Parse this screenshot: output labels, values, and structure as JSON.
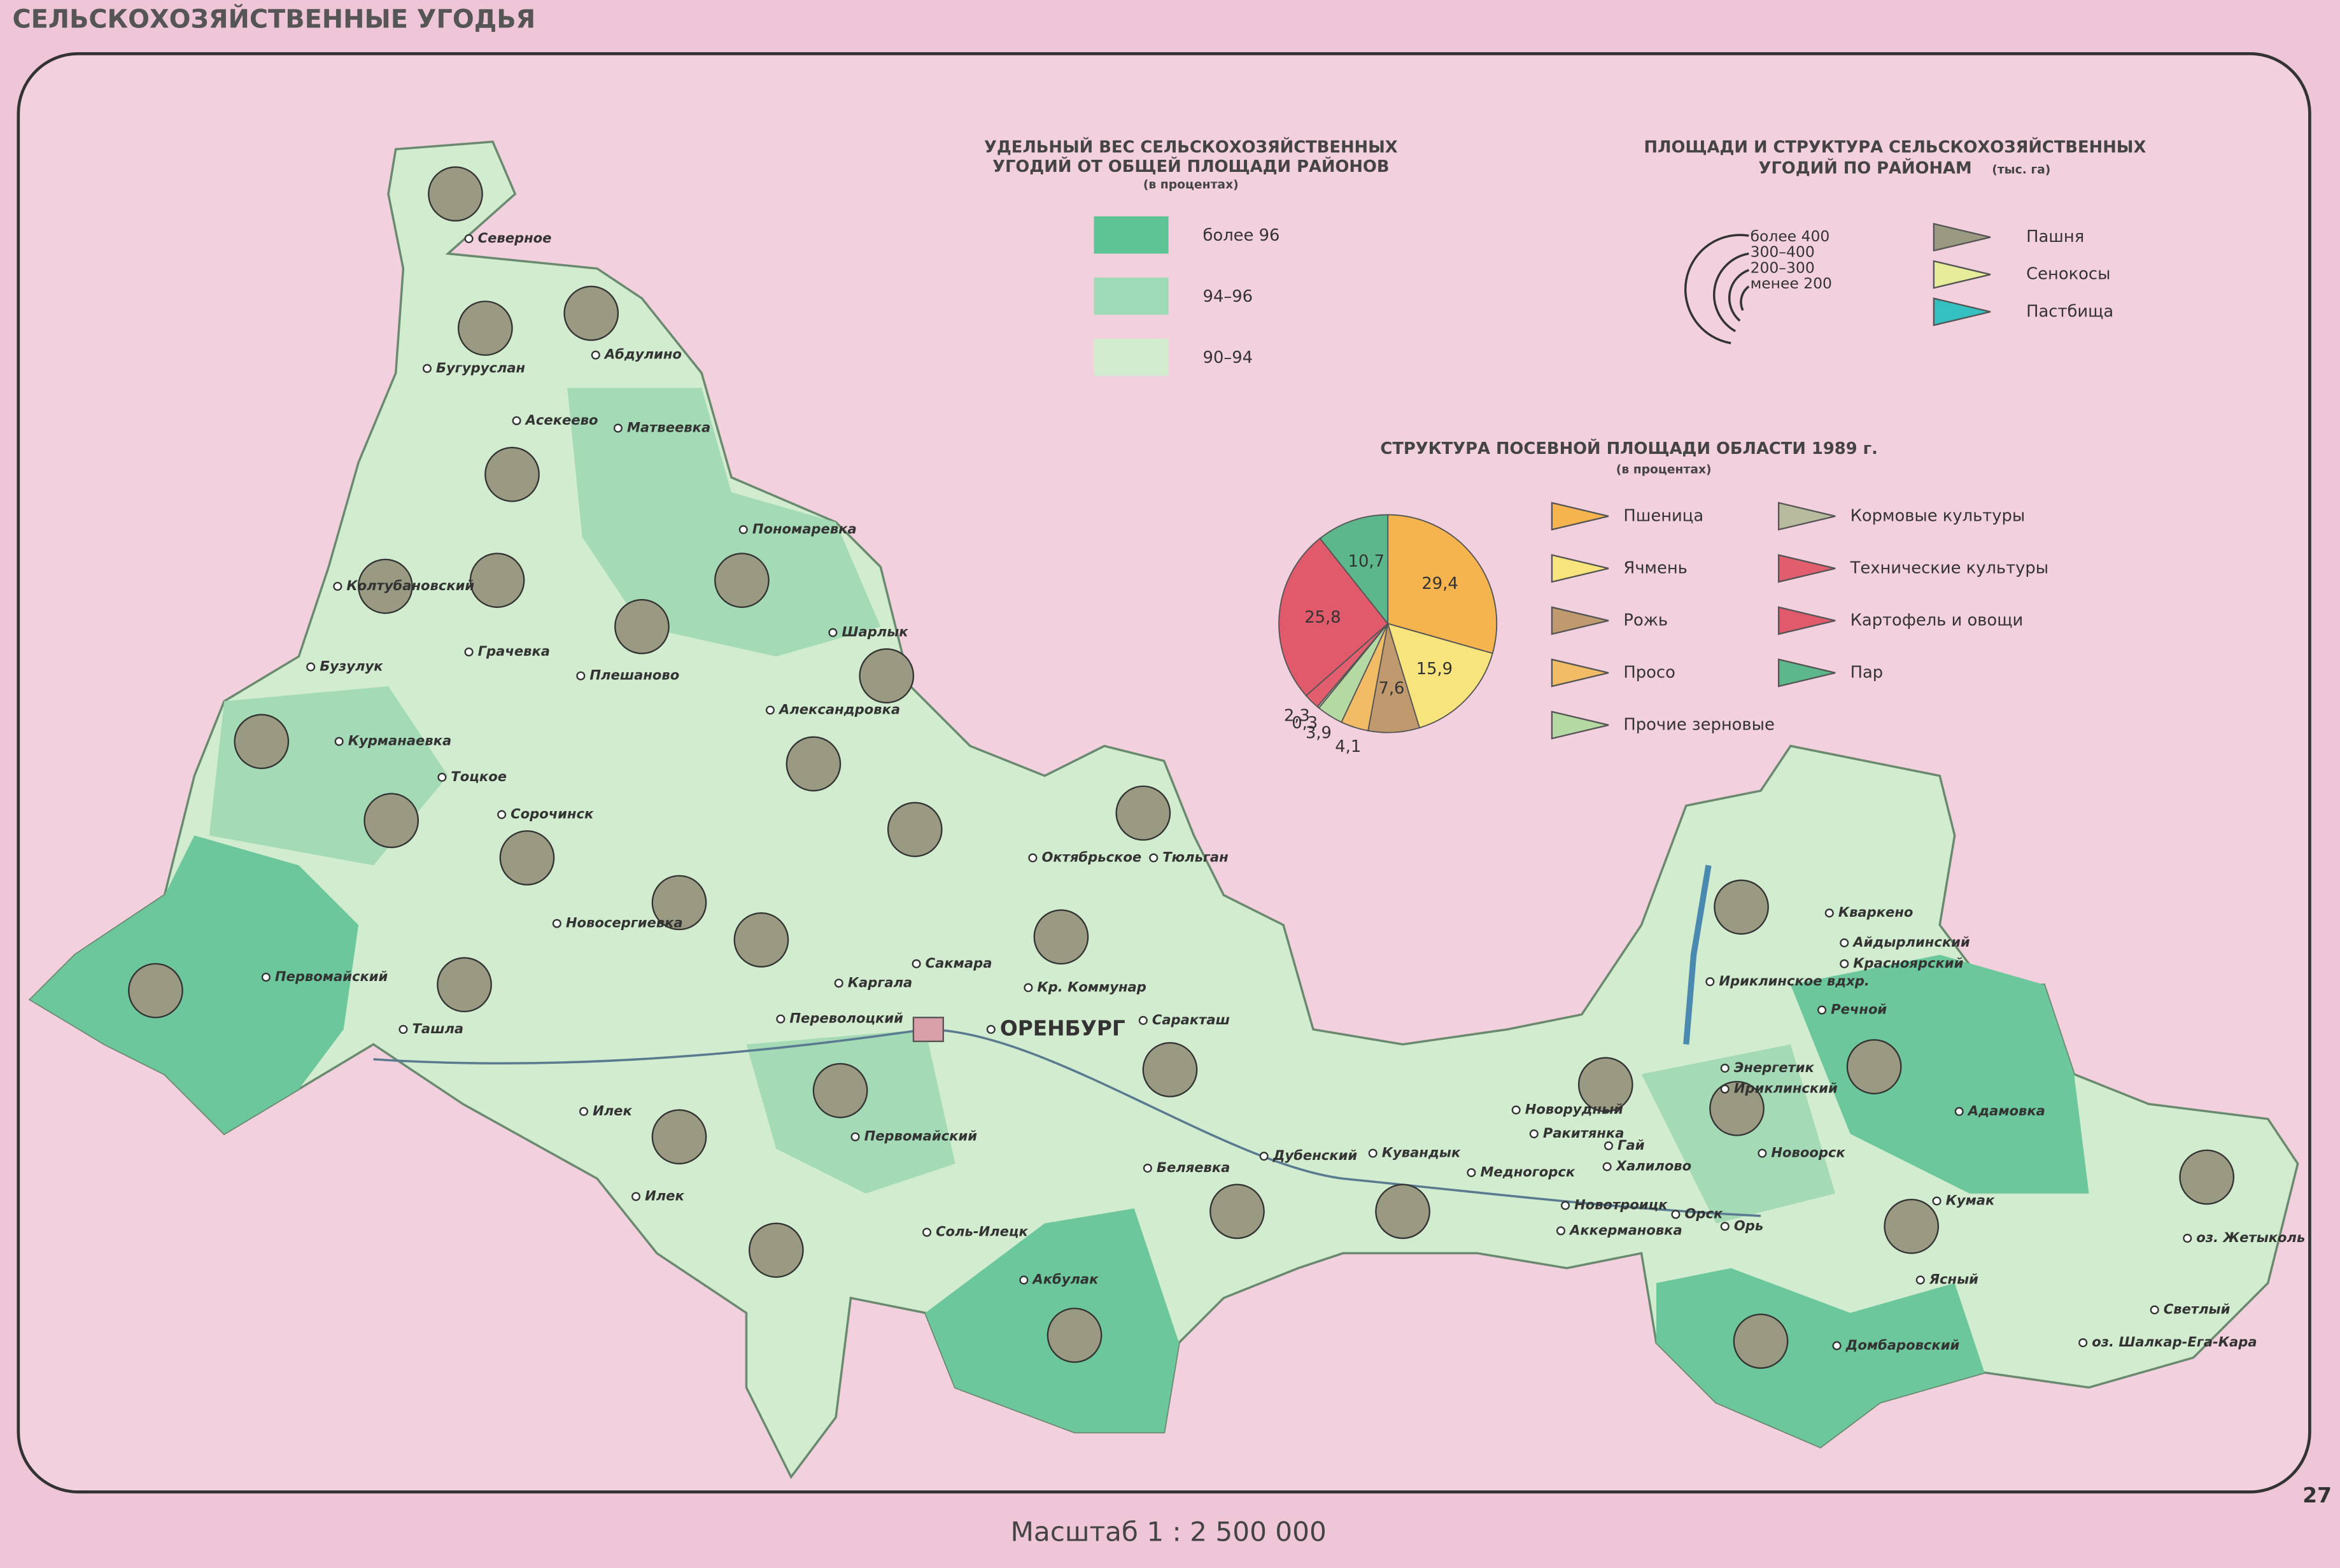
{
  "header": "СЕЛЬСКОХОЗЯЙСТВЕННЫЕ УГОДЬЯ",
  "legend_density": {
    "title": "УДЕЛЬНЫЙ ВЕС СЕЛЬСКОХОЗЯЙСТВЕННЫХ",
    "title2": "УГОДИЙ ОТ ОБЩЕЙ ПЛОЩАДИ РАЙОНОВ",
    "subtitle": "(в процентах)",
    "items": [
      {
        "label": "более 96",
        "color": "#5fc495"
      },
      {
        "label": "94–96",
        "color": "#9fdbb6"
      },
      {
        "label": "90–94",
        "color": "#d2ecd0"
      }
    ]
  },
  "legend_area": {
    "title": "ПЛОЩАДИ И СТРУКТУРА СЕЛЬСКОХОЗЯЙСТВЕННЫХ",
    "title2": "УГОДИЙ ПО РАЙОНАМ",
    "unit": "(тыс. га)",
    "sizes": [
      "более 400",
      "300–400",
      "200–300",
      "менее 200"
    ],
    "items": [
      {
        "label": "Пашня",
        "color": "#9a9a82"
      },
      {
        "label": "Сенокосы",
        "color": "#e6ec9a"
      },
      {
        "label": "Пастбища",
        "color": "#34bfc0"
      }
    ]
  },
  "chart_data": {
    "type": "pie",
    "title": "СТРУКТУРА ПОСЕВНОЙ ПЛОЩАДИ ОБЛАСТИ 1989 г.",
    "subtitle": "(в процентах)",
    "categories": [
      "Пшеница",
      "Ячмень",
      "Рожь",
      "Просо",
      "Прочие зерновые",
      "Кормовые культуры",
      "Технические культуры",
      "Картофель и овощи",
      "Пар"
    ],
    "values": [
      29.4,
      15.9,
      7.6,
      4.1,
      3.9,
      0.3,
      2.3,
      25.8,
      10.7
    ],
    "value_labels": [
      "29,4",
      "15,9",
      "7,6",
      "4,1",
      "3,9",
      "0,3",
      "2,3",
      "25,8",
      "10,7"
    ],
    "colors": [
      "#f5b44e",
      "#f7e47c",
      "#c09a6e",
      "#f2bb66",
      "#b5d9a2",
      "#b9bb9e",
      "#e25e6e",
      "#e05a6c",
      "#5cb88c"
    ]
  },
  "places": [
    "Северное",
    "Бугуруслан",
    "Абдулино",
    "Асекеево",
    "Матвеевка",
    "Пономаревка",
    "Колтубановский",
    "Грачевка",
    "Бузулук",
    "Плешаново",
    "Шарлык",
    "Александровка",
    "Курманаевка",
    "Тоцкое",
    "Сорочинск",
    "Октябрьское",
    "Тюльган",
    "Новосергиевка",
    "Первомайский",
    "Ташла",
    "Переволоцкий",
    "Каргала",
    "Сакмара",
    "Кр. Коммунар",
    "ОРЕНБУРГ",
    "Саракташ",
    "Первомайский",
    "Илек",
    "Илек",
    "Соль-Илецк",
    "Акбулак",
    "Беляевка",
    "Дубенский",
    "Кувандык",
    "Медногорск",
    "Новорудный",
    "Ракитянка",
    "Гай",
    "Халилово",
    "Новотроицк",
    "Аккермановка",
    "Орск",
    "Орь",
    "Новоорск",
    "Энергетик",
    "Ириклинский",
    "Ириклинское вдхр.",
    "Кваркено",
    "Айдырлинский",
    "Красноярский",
    "Речной",
    "Адамовка",
    "Кумак",
    "Ясный",
    "Домбаровский",
    "Светлый",
    "оз. Жетыколь",
    "оз. Шалкар-Ега-Кара"
  ],
  "scale": "Масштаб 1 : 2 500 000",
  "page_number": "27"
}
